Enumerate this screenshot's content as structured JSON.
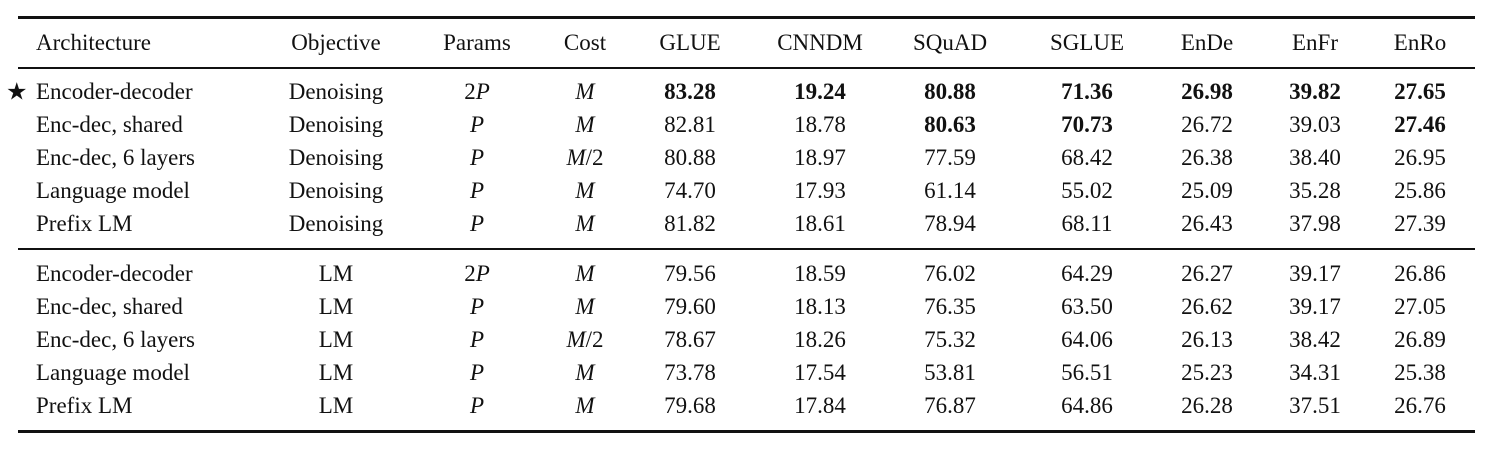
{
  "table": {
    "header": [
      "Architecture",
      "Objective",
      "Params",
      "Cost",
      "GLUE",
      "CNNDM",
      "SQuAD",
      "SGLUE",
      "EnDe",
      "EnFr",
      "EnRo"
    ],
    "groups": [
      [
        [
          "Encoder-decoder",
          "Denoising",
          "2P",
          "M",
          "83.28",
          "19.24",
          "80.88",
          "71.36",
          "26.98",
          "39.82",
          "27.65"
        ],
        [
          "Enc-dec, shared",
          "Denoising",
          "P",
          "M",
          "82.81",
          "18.78",
          "80.63",
          "70.73",
          "26.72",
          "39.03",
          "27.46"
        ],
        [
          "Enc-dec, 6 layers",
          "Denoising",
          "P",
          "M/2",
          "80.88",
          "18.97",
          "77.59",
          "68.42",
          "26.38",
          "38.40",
          "26.95"
        ],
        [
          "Language model",
          "Denoising",
          "P",
          "M",
          "74.70",
          "17.93",
          "61.14",
          "55.02",
          "25.09",
          "35.28",
          "25.86"
        ],
        [
          "Prefix LM",
          "Denoising",
          "P",
          "M",
          "81.82",
          "18.61",
          "78.94",
          "68.11",
          "26.43",
          "37.98",
          "27.39"
        ]
      ],
      [
        [
          "Encoder-decoder",
          "LM",
          "2P",
          "M",
          "79.56",
          "18.59",
          "76.02",
          "64.29",
          "26.27",
          "39.17",
          "26.86"
        ],
        [
          "Enc-dec, shared",
          "LM",
          "P",
          "M",
          "79.60",
          "18.13",
          "76.35",
          "63.50",
          "26.62",
          "39.17",
          "27.05"
        ],
        [
          "Enc-dec, 6 layers",
          "LM",
          "P",
          "M/2",
          "78.67",
          "18.26",
          "75.32",
          "64.06",
          "26.13",
          "38.42",
          "26.89"
        ],
        [
          "Language model",
          "LM",
          "P",
          "M",
          "73.78",
          "17.54",
          "53.81",
          "56.51",
          "25.23",
          "34.31",
          "25.38"
        ],
        [
          "Prefix LM",
          "LM",
          "P",
          "M",
          "79.68",
          "17.84",
          "76.87",
          "64.86",
          "26.28",
          "37.51",
          "26.76"
        ]
      ]
    ],
    "bold": [
      [
        0,
        0,
        4
      ],
      [
        0,
        0,
        5
      ],
      [
        0,
        0,
        6
      ],
      [
        0,
        0,
        7
      ],
      [
        0,
        0,
        8
      ],
      [
        0,
        0,
        9
      ],
      [
        0,
        0,
        10
      ],
      [
        0,
        1,
        6
      ],
      [
        0,
        1,
        7
      ],
      [
        0,
        1,
        10
      ]
    ]
  }
}
